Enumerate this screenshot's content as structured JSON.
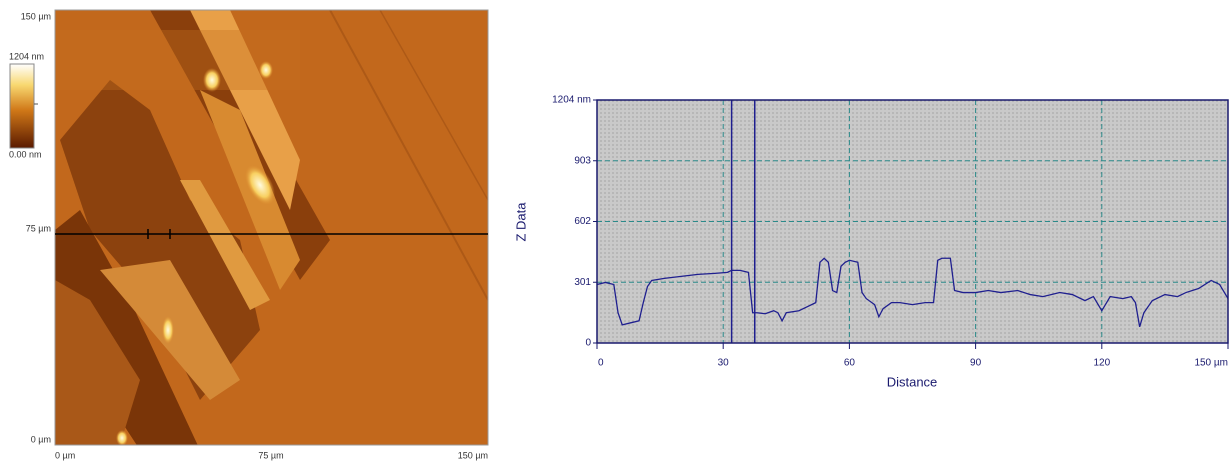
{
  "afm_image": {
    "y_labels": [
      "150 µm",
      "75 µm",
      "0 µm"
    ],
    "x_labels": [
      "0 µm",
      "75 µm",
      "150 µm"
    ],
    "colorbar_labels": [
      "1204 nm",
      "0.00 nm"
    ]
  },
  "chart_data": {
    "type": "line",
    "y_label": "Z Data",
    "x_label": "Distance",
    "x": [
      0,
      2,
      4,
      5,
      6,
      8,
      10,
      11,
      12,
      13,
      16,
      20,
      24,
      28,
      31,
      32,
      33,
      34,
      35,
      36,
      37,
      38,
      40,
      42,
      43,
      44,
      45,
      48,
      50,
      52,
      53,
      54,
      55,
      56,
      57,
      58,
      59,
      60,
      62,
      63,
      64,
      66,
      67,
      68,
      70,
      72,
      75,
      78,
      80,
      81,
      82,
      84,
      85,
      87,
      90,
      93,
      96,
      100,
      103,
      106,
      110,
      113,
      116,
      118,
      120,
      122,
      125,
      127,
      128,
      129,
      130,
      132,
      135,
      138,
      140,
      143,
      146,
      148,
      150
    ],
    "series": [
      {
        "color": "#1f1f8f",
        "values": [
          290,
          300,
          290,
          150,
          90,
          100,
          110,
          200,
          280,
          310,
          320,
          330,
          340,
          345,
          350,
          360,
          360,
          360,
          355,
          350,
          150,
          150,
          145,
          160,
          150,
          110,
          150,
          160,
          180,
          200,
          400,
          420,
          400,
          260,
          250,
          380,
          400,
          410,
          400,
          250,
          220,
          190,
          130,
          170,
          200,
          200,
          190,
          200,
          200,
          410,
          420,
          420,
          260,
          250,
          250,
          260,
          250,
          260,
          240,
          230,
          250,
          240,
          210,
          230,
          160,
          230,
          220,
          230,
          200,
          80,
          150,
          210,
          240,
          230,
          250,
          270,
          310,
          290,
          220
        ]
      }
    ],
    "cursors": [
      32,
      37.5
    ],
    "xlim": [
      0,
      150
    ],
    "xticks": [
      0,
      30,
      60,
      90,
      120,
      {
        "value": 150,
        "label": "150 µm"
      }
    ],
    "ylim": [
      0,
      1204
    ],
    "yticks": [
      0,
      301,
      602,
      903,
      {
        "value": 1204,
        "label": "1204 nm"
      }
    ],
    "grid": true
  }
}
